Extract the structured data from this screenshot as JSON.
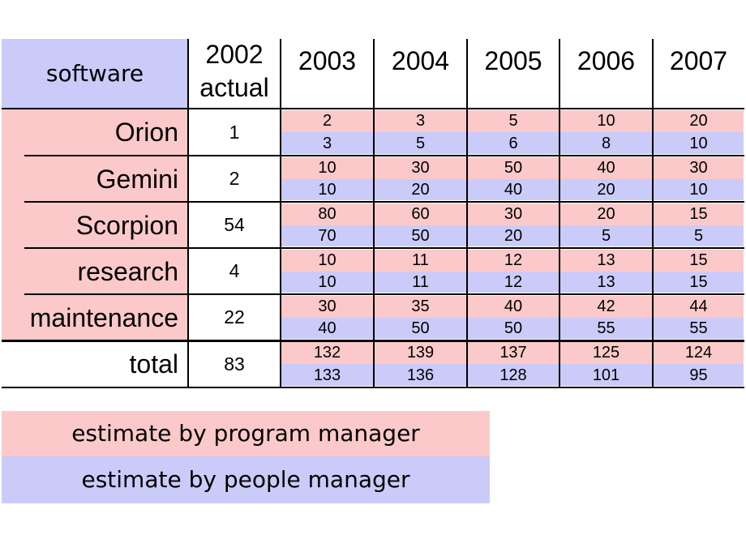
{
  "header": {
    "first": "software",
    "actual": [
      "2002",
      "actual"
    ],
    "years": [
      "2003",
      "2004",
      "2005",
      "2006",
      "2007"
    ]
  },
  "rows": [
    {
      "name": "Orion",
      "actual": 1,
      "program": [
        2,
        3,
        5,
        10,
        20
      ],
      "people": [
        3,
        5,
        6,
        8,
        10
      ]
    },
    {
      "name": "Gemini",
      "actual": 2,
      "program": [
        10,
        30,
        50,
        40,
        30
      ],
      "people": [
        10,
        20,
        40,
        20,
        10
      ]
    },
    {
      "name": "Scorpion",
      "actual": 54,
      "program": [
        80,
        60,
        30,
        20,
        15
      ],
      "people": [
        70,
        50,
        20,
        5,
        5
      ]
    },
    {
      "name": "research",
      "actual": 4,
      "program": [
        10,
        11,
        12,
        13,
        15
      ],
      "people": [
        10,
        11,
        12,
        13,
        15
      ]
    },
    {
      "name": "maintenance",
      "actual": 22,
      "program": [
        30,
        35,
        40,
        42,
        44
      ],
      "people": [
        40,
        50,
        50,
        55,
        55
      ]
    }
  ],
  "total": {
    "name": "total",
    "actual": 83,
    "program": [
      132,
      139,
      137,
      125,
      124
    ],
    "people": [
      133,
      136,
      128,
      101,
      95
    ]
  },
  "legend": [
    "estimate by program manager",
    "estimate by people manager"
  ]
}
